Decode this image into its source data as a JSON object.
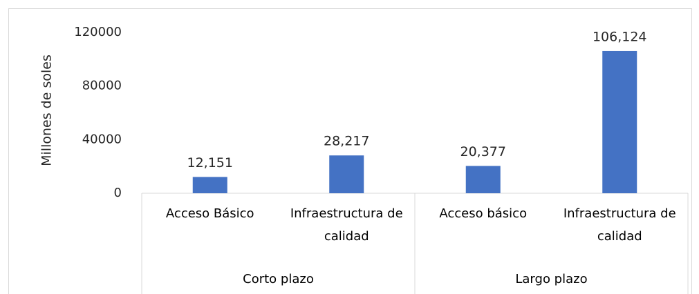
{
  "chart_data": {
    "type": "bar",
    "y_label": "Millones de soles",
    "groups": [
      {
        "name": "Corto plazo",
        "categories": [
          "Acceso Básico",
          "Infraestructura de calidad"
        ],
        "values": [
          12151,
          28217
        ],
        "value_labels": [
          "12,151",
          "28,217"
        ]
      },
      {
        "name": "Largo plazo",
        "categories": [
          "Acceso básico",
          "Infraestructura de calidad"
        ],
        "values": [
          20377,
          106124
        ],
        "value_labels": [
          "20,377",
          "106,124"
        ]
      }
    ],
    "color": "#4472c4",
    "ylim": [
      0,
      120000
    ],
    "yticks": [
      0,
      40000,
      80000,
      120000
    ],
    "grid": false
  }
}
